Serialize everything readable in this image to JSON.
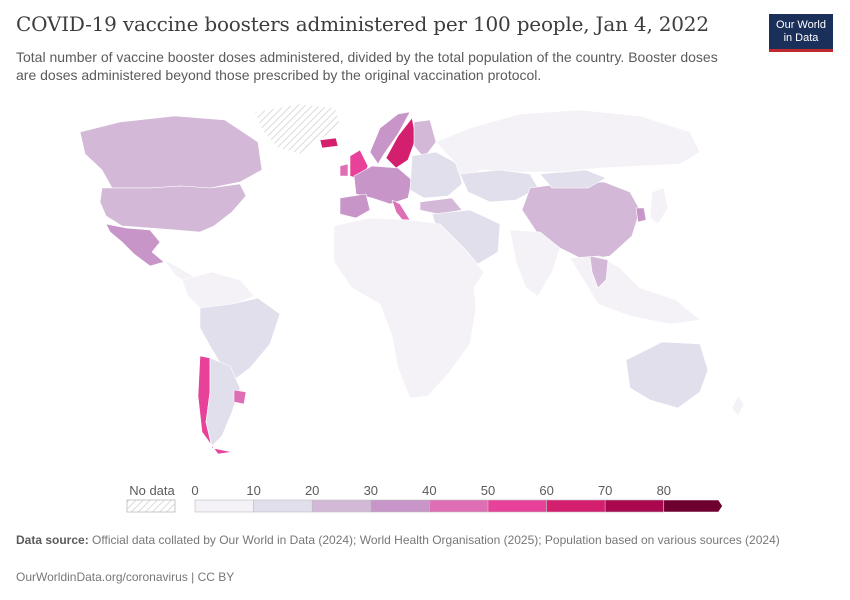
{
  "header": {
    "title": "COVID-19 vaccine boosters administered per 100 people, Jan 4, 2022",
    "subtitle": "Total number of vaccine booster doses administered, divided by the total population of the country. Booster doses are doses administered beyond those prescribed by the original vaccination protocol.",
    "logo_line1": "Our World",
    "logo_line2": "in Data"
  },
  "legend": {
    "no_data_label": "No data",
    "no_data_color": "#ffffff",
    "bins": [
      {
        "label": "0",
        "color": "#f4f1f7"
      },
      {
        "label": "10",
        "color": "#e2dfec"
      },
      {
        "label": "20",
        "color": "#d3b8d7"
      },
      {
        "label": "30",
        "color": "#c895c9"
      },
      {
        "label": "40",
        "color": "#de6fb5"
      },
      {
        "label": "50",
        "color": "#e8419a"
      },
      {
        "label": "60",
        "color": "#d41f6f"
      },
      {
        "label": "70",
        "color": "#a9084f"
      },
      {
        "label": "80",
        "color": "#6e0030"
      }
    ]
  },
  "map_regions": [
    {
      "name": "Greenland",
      "bin": "no-data"
    },
    {
      "name": "Canada",
      "bin": 2
    },
    {
      "name": "United States",
      "bin": 2
    },
    {
      "name": "Mexico",
      "bin": 3
    },
    {
      "name": "Central America",
      "bin": 0
    },
    {
      "name": "South America North",
      "bin": 0
    },
    {
      "name": "Brazil",
      "bin": 1
    },
    {
      "name": "Chile",
      "bin": 5
    },
    {
      "name": "Argentina",
      "bin": 1
    },
    {
      "name": "Uruguay",
      "bin": 4
    },
    {
      "name": "Iceland",
      "bin": 6
    },
    {
      "name": "United Kingdom",
      "bin": 5
    },
    {
      "name": "Ireland",
      "bin": 4
    },
    {
      "name": "Norway",
      "bin": 3
    },
    {
      "name": "Sweden",
      "bin": 6
    },
    {
      "name": "Finland",
      "bin": 2
    },
    {
      "name": "Western Europe",
      "bin": 3
    },
    {
      "name": "Spain",
      "bin": 3
    },
    {
      "name": "Italy",
      "bin": 4
    },
    {
      "name": "Eastern Europe",
      "bin": 1
    },
    {
      "name": "Turkey",
      "bin": 2
    },
    {
      "name": "Russia",
      "bin": 0
    },
    {
      "name": "Kazakhstan",
      "bin": 1
    },
    {
      "name": "China",
      "bin": 2
    },
    {
      "name": "South Korea",
      "bin": 3
    },
    {
      "name": "Japan",
      "bin": 0
    },
    {
      "name": "Mongolia",
      "bin": 1
    },
    {
      "name": "Middle East",
      "bin": 1
    },
    {
      "name": "India",
      "bin": 0
    },
    {
      "name": "Southeast Asia",
      "bin": 0
    },
    {
      "name": "Thailand",
      "bin": 2
    },
    {
      "name": "Africa",
      "bin": 0
    },
    {
      "name": "Australia",
      "bin": 1
    },
    {
      "name": "New Zealand",
      "bin": 0
    }
  ],
  "footer": {
    "source_label": "Data source:",
    "source_text": " Official data collated by Our World in Data (2024); World Health Organisation (2025); Population based on various sources (2024)",
    "url": "OurWorldinData.org/coronavirus | CC BY"
  }
}
